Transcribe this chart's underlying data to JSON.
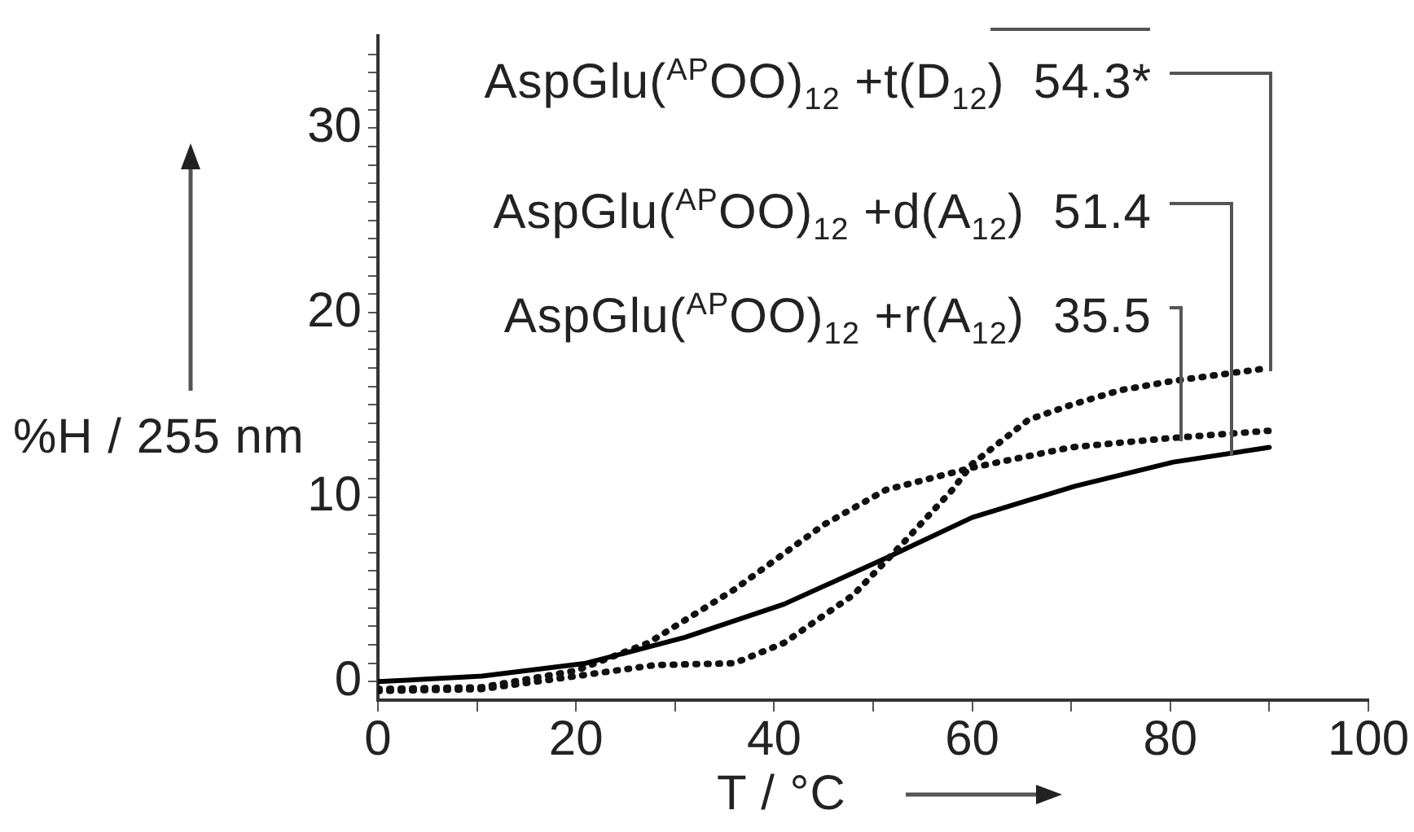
{
  "chart_data": {
    "type": "line",
    "xlabel": "T / °C",
    "ylabel": "%H / 255 nm",
    "x": [
      0,
      10.5,
      21,
      31,
      41,
      51.3,
      60,
      70.4,
      80.3,
      90
    ],
    "series": [
      {
        "name": "AspGlu($^{AP}$OO)$_{12}$ +t(D$_{12}$)",
        "color": "#111111",
        "line_style": "dotted",
        "x": [
          0,
          10.5,
          20,
          28,
          36,
          41,
          48,
          53,
          58,
          60,
          65.7,
          70,
          75,
          80.3,
          90
        ],
        "values": [
          -0.5,
          -0.4,
          0.3,
          0.9,
          1.0,
          2.1,
          4.7,
          7.5,
          10.4,
          11.8,
          14.2,
          15.0,
          15.8,
          16.3,
          17.0
        ]
      },
      {
        "name": "AspGlu($^{AP}$OO)$_{12}$ +d(A$_{12}$)",
        "color": "#000000",
        "line_style": "solid",
        "values": [
          0,
          0.3,
          1.0,
          2.4,
          4.2,
          6.7,
          8.9,
          10.6,
          11.9,
          12.7
        ]
      },
      {
        "name": "AspGlu($^{AP}$OO)$_{12}$ +r(A$_{12}$)",
        "color": "#111111",
        "line_style": "dotted",
        "x": [
          0,
          10.5,
          20,
          27.3,
          36,
          45,
          51.3,
          60,
          70,
          80,
          90
        ],
        "values": [
          -0.4,
          -0.3,
          0.6,
          2.1,
          5.0,
          8.5,
          10.4,
          11.6,
          12.7,
          13.2,
          13.6
        ]
      }
    ],
    "annotations": [
      "54.3*",
      "51.4",
      "35.5"
    ],
    "xlim": [
      0,
      100
    ],
    "xticks": [
      0,
      {
        "value": 10,
        "label": null
      },
      20,
      {
        "value": 30,
        "label": null
      },
      40,
      {
        "value": 50,
        "label": null
      },
      60,
      {
        "value": 70,
        "label": null
      },
      80,
      {
        "value": 90,
        "label": null
      },
      100
    ],
    "ylim": [
      -1,
      35
    ],
    "yticks": [
      0,
      {
        "value": 1,
        "label": null
      },
      {
        "value": 2,
        "label": null
      },
      {
        "value": 3,
        "label": null
      },
      {
        "value": 4,
        "label": null
      },
      {
        "value": 5,
        "label": null
      },
      {
        "value": 6,
        "label": null
      },
      {
        "value": 7,
        "label": null
      },
      {
        "value": 8,
        "label": null
      },
      {
        "value": 9,
        "label": null
      },
      10,
      {
        "value": 11,
        "label": null
      },
      {
        "value": 12,
        "label": null
      },
      {
        "value": 13,
        "label": null
      },
      {
        "value": 14,
        "label": null
      },
      {
        "value": 15,
        "label": null
      },
      {
        "value": 16,
        "label": null
      },
      {
        "value": 17,
        "label": null
      },
      {
        "value": 18,
        "label": null
      },
      {
        "value": 19,
        "label": null
      },
      20,
      {
        "value": 21,
        "label": null
      },
      {
        "value": 22,
        "label": null
      },
      {
        "value": 23,
        "label": null
      },
      {
        "value": 24,
        "label": null
      },
      {
        "value": 25,
        "label": null
      },
      {
        "value": 26,
        "label": null
      },
      {
        "value": 27,
        "label": null
      },
      {
        "value": 28,
        "label": null
      },
      {
        "value": 29,
        "label": null
      },
      30,
      {
        "value": 31,
        "label": null
      },
      {
        "value": 32,
        "label": null
      },
      {
        "value": 33,
        "label": null
      },
      {
        "value": 34,
        "label": null
      }
    ],
    "grid": false,
    "legend": false,
    "marker": "none"
  }
}
